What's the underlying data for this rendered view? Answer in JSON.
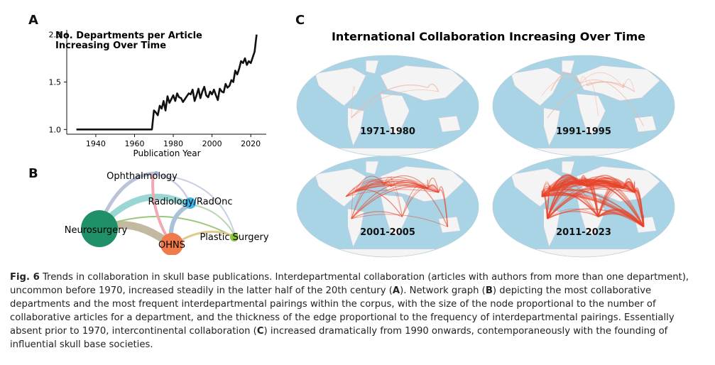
{
  "panels": {
    "a_letter": "A",
    "b_letter": "B",
    "c_letter": "C"
  },
  "chart_data": [
    {
      "type": "line",
      "title": "No. Departments per Article Increasing Over Time",
      "title_lines": [
        "No. Departments per Article",
        "Increasing Over Time"
      ],
      "xlabel": "Publication Year",
      "ylabel": "",
      "xlim": [
        1925,
        2028
      ],
      "ylim": [
        0.95,
        2.05
      ],
      "xticks": [
        1940,
        1960,
        1980,
        2000,
        2020
      ],
      "yticks": [
        1.0,
        1.5,
        2.0
      ],
      "ytick_labels": [
        "1.0",
        "1.5",
        "2.0"
      ],
      "grid": false,
      "series": [
        {
          "x": [
            1930,
            1940,
            1950,
            1960,
            1969,
            1970,
            1971,
            1972,
            1973,
            1974,
            1975,
            1976,
            1977,
            1978,
            1979,
            1980,
            1981,
            1982,
            1983,
            1984,
            1985,
            1986,
            1987,
            1988,
            1989,
            1990,
            1991,
            1992,
            1993,
            1994,
            1995,
            1996,
            1997,
            1998,
            1999,
            2000,
            2001,
            2002,
            2003,
            2004,
            2005,
            2006,
            2007,
            2008,
            2009,
            2010,
            2011,
            2012,
            2013,
            2014,
            2015,
            2016,
            2017,
            2018,
            2019,
            2020,
            2021,
            2022,
            2023
          ],
          "y": [
            1.0,
            1.0,
            1.0,
            1.0,
            1.0,
            1.2,
            1.18,
            1.15,
            1.25,
            1.22,
            1.3,
            1.2,
            1.35,
            1.28,
            1.32,
            1.36,
            1.3,
            1.38,
            1.34,
            1.33,
            1.29,
            1.32,
            1.35,
            1.38,
            1.37,
            1.42,
            1.3,
            1.36,
            1.43,
            1.33,
            1.4,
            1.45,
            1.36,
            1.34,
            1.4,
            1.37,
            1.42,
            1.36,
            1.31,
            1.43,
            1.4,
            1.39,
            1.48,
            1.44,
            1.46,
            1.52,
            1.5,
            1.62,
            1.58,
            1.64,
            1.72,
            1.7,
            1.75,
            1.68,
            1.72,
            1.7,
            1.76,
            1.82,
            2.0
          ]
        }
      ]
    }
  ],
  "network": {
    "nodes": [
      {
        "label": "Ophthalmology",
        "color": "#9ab0d8"
      },
      {
        "label": "Radiology/RadOnc",
        "color": "#3fb6e8"
      },
      {
        "label": "Neurosurgery",
        "color": "#1f9068"
      },
      {
        "label": "OHNS",
        "color": "#f07a4a"
      },
      {
        "label": "Plastic Surgery",
        "color": "#8cc43c"
      }
    ]
  },
  "maps": {
    "title": "International Collaboration Increasing Over Time",
    "periods": [
      "1971-1980",
      "1991-1995",
      "2001-2005",
      "2011-2023"
    ]
  },
  "caption": {
    "label": "Fig. 6",
    "p1": "  Trends in collaboration in skull base publications. Interdepartmental collaboration (articles with authors from more than one department), uncommon before 1970, increased steadily in the latter half of the 20th century (",
    "a": "A",
    "p2": "). Network graph (",
    "b": "B",
    "p3": ") depicting the most collaborative departments and the most frequent interdepartmental pairings within the corpus, with the size of the node proportional to the number of collaborative articles for a department, and the thickness of the edge proportional to the frequency of interdepartmental pairings. Essentially absent prior to 1970, intercontinental collaboration (",
    "c": "C",
    "p4": ") increased dramatically from 1990 onwards, contemporaneously with the founding of influential skull base societies."
  }
}
